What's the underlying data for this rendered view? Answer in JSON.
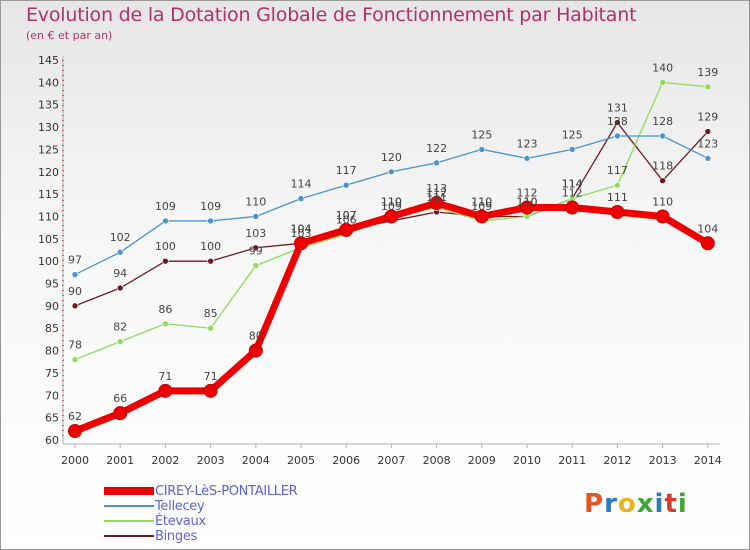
{
  "title": "Evolution de la Dotation Globale de Fonctionnement par Habitant",
  "subtitle": "(en € et par an)",
  "brand": {
    "text": "Proxiti",
    "colors": [
      "#e8531f",
      "#2f78c4",
      "#e8b51f",
      "#3fa535",
      "#2f78c4",
      "#d63b2b",
      "#3fa535"
    ]
  },
  "chart_data": {
    "type": "line",
    "title": "Evolution de la Dotation Globale de Fonctionnement par Habitant",
    "subtitle": "(en € et par an)",
    "xlabel": "",
    "ylabel": "",
    "ylim": [
      60,
      145
    ],
    "yticks": [
      60,
      65,
      70,
      75,
      80,
      85,
      90,
      95,
      100,
      105,
      110,
      115,
      120,
      125,
      130,
      135,
      140,
      145
    ],
    "grid": false,
    "legend_position": "bottom-left",
    "categories": [
      "2000",
      "2001",
      "2002",
      "2003",
      "2004",
      "2005",
      "2006",
      "2007",
      "2008",
      "2009",
      "2010",
      "2011",
      "2012",
      "2013",
      "2014"
    ],
    "series": [
      {
        "name": "Binges",
        "color": "#6b1c22",
        "values": [
          90,
          94,
          100,
          100,
          103,
          104,
          107,
          109,
          111,
          110,
          110,
          114,
          131,
          118,
          129
        ]
      },
      {
        "name": "Étevaux",
        "color": "#8ddc5a",
        "values": [
          78,
          82,
          86,
          85,
          99,
          103,
          106,
          110,
          112,
          109,
          110,
          114,
          117,
          140,
          139
        ]
      },
      {
        "name": "Tellecey",
        "color": "#4b93cf",
        "values": [
          97,
          102,
          109,
          109,
          110,
          114,
          117,
          120,
          122,
          125,
          123,
          125,
          128,
          128,
          123
        ]
      },
      {
        "name": "CIREY-LèS-PONTAILLER",
        "color": "#ee0000",
        "values": [
          62,
          66,
          71,
          71,
          80,
          104,
          107,
          110,
          113,
          110,
          112,
          112,
          111,
          110,
          104
        ]
      }
    ],
    "legend_order": [
      "CIREY-LèS-PONTAILLER",
      "Tellecey",
      "Étevaux",
      "Binges"
    ]
  }
}
